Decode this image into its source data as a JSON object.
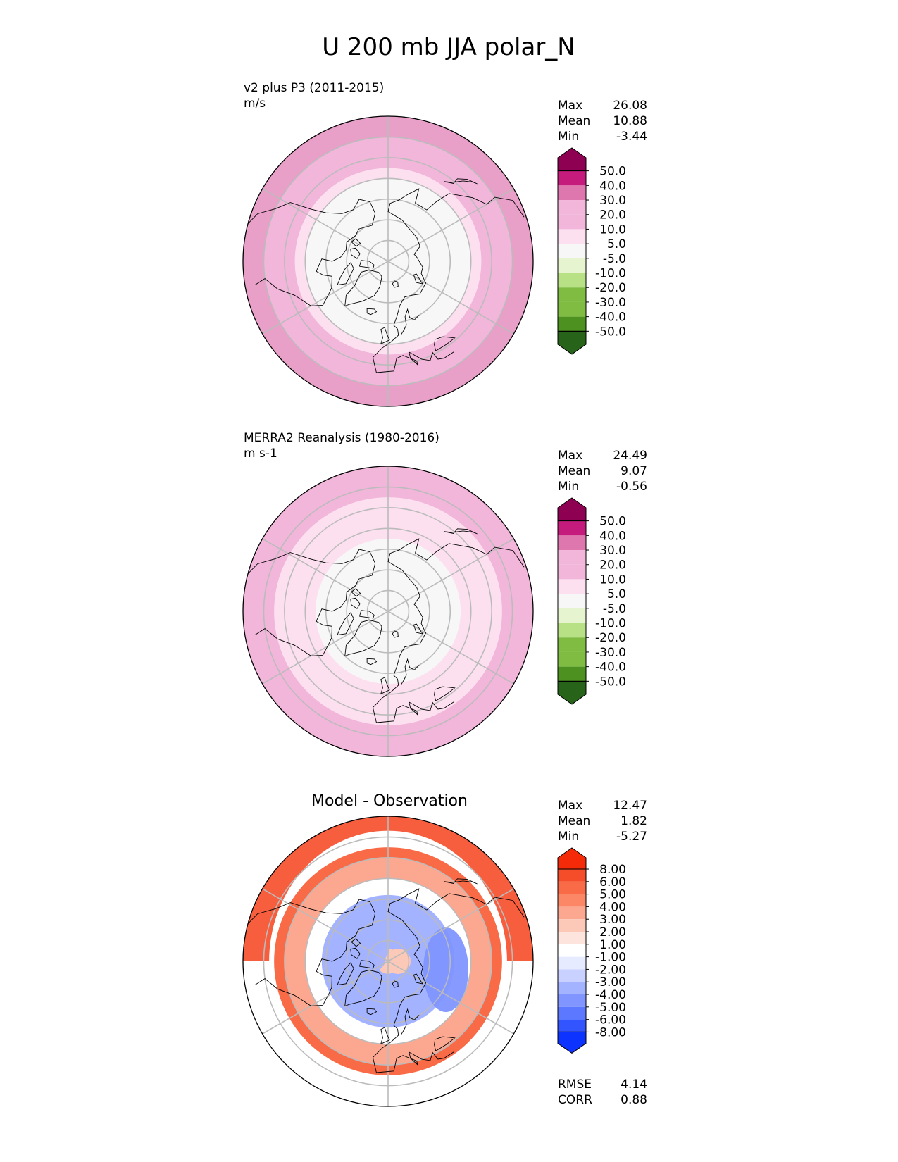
{
  "figure_title": "U 200 mb JJA polar_N",
  "palette": {
    "diverging_green_pink": [
      "#276419",
      "#4d9221",
      "#7fbc41",
      "#b8e186",
      "#e6f5d0",
      "#f7f7f7",
      "#fde0ef",
      "#f1b6da",
      "#de77ae",
      "#c51b7d",
      "#8e0152"
    ],
    "blue_white_red": [
      "#0c33ff",
      "#3355ff",
      "#5b78ff",
      "#8095ff",
      "#a4b3ff",
      "#c8d1ff",
      "#e6ebff",
      "#ffffff",
      "#fde4dc",
      "#fcc8b8",
      "#fca891",
      "#fb8767",
      "#f96a47",
      "#f54d29",
      "#f42a08"
    ],
    "land_outline": "#000000",
    "grid": "#bbbbbb"
  },
  "chart_data": [
    {
      "type": "heatmap",
      "projection": "north-polar-stereographic",
      "subtitle": "v2 plus P3 (2011-2015)",
      "units": "m/s",
      "stats": [
        {
          "label": "Max",
          "value": "26.08"
        },
        {
          "label": "Mean",
          "value": "10.88"
        },
        {
          "label": "Min",
          "value": "-3.44"
        }
      ],
      "colorbar": {
        "ticks": [
          "50.0",
          "40.0",
          "30.0",
          "20.0",
          "10.0",
          "5.0",
          "-5.0",
          "-10.0",
          "-20.0",
          "-30.0",
          "-40.0",
          "-50.0"
        ],
        "top_color": "#8e0152",
        "bottom_color": "#276419"
      },
      "field_rings": [
        {
          "lat_from": 50,
          "lat_to": 90,
          "level": "-5 to 5",
          "color": "#f7f7f7"
        },
        {
          "lat_from": 45,
          "lat_to": 50,
          "level": "5 to 10",
          "color": "#fde0ef"
        },
        {
          "lat_from": 30,
          "lat_to": 45,
          "level": "10 to 20",
          "color": "#f1b6da"
        },
        {
          "lat_from": 20,
          "lat_to": 30,
          "level": "20 to 30",
          "color": "#e8a0c8"
        }
      ]
    },
    {
      "type": "heatmap",
      "projection": "north-polar-stereographic",
      "subtitle": "MERRA2 Reanalysis (1980-2016)",
      "units": "m s-1",
      "stats": [
        {
          "label": "Max",
          "value": "24.49"
        },
        {
          "label": "Mean",
          "value": "9.07"
        },
        {
          "label": "Min",
          "value": "-0.56"
        }
      ],
      "colorbar": {
        "ticks": [
          "50.0",
          "40.0",
          "30.0",
          "20.0",
          "10.0",
          "5.0",
          "-5.0",
          "-10.0",
          "-20.0",
          "-30.0",
          "-40.0",
          "-50.0"
        ],
        "top_color": "#8e0152",
        "bottom_color": "#276419"
      },
      "field_rings": [
        {
          "lat_from": 55,
          "lat_to": 90,
          "level": "-5 to 5",
          "color": "#f7f7f7"
        },
        {
          "lat_from": 35,
          "lat_to": 55,
          "level": "5 to 10",
          "color": "#fde0ef"
        },
        {
          "lat_from": 20,
          "lat_to": 35,
          "level": "10 to 20",
          "color": "#f1b6da"
        }
      ]
    },
    {
      "type": "heatmap",
      "projection": "north-polar-stereographic",
      "subtitle": "Model - Observation",
      "units": "",
      "stats": [
        {
          "label": "Max",
          "value": "12.47"
        },
        {
          "label": "Mean",
          "value": "1.82"
        },
        {
          "label": "Min",
          "value": "-5.27"
        }
      ],
      "colorbar": {
        "ticks": [
          "8.00",
          "6.00",
          "5.00",
          "4.00",
          "3.00",
          "2.00",
          "1.00",
          "-1.00",
          "-2.00",
          "-3.00",
          "-4.00",
          "-5.00",
          "-6.00",
          "-8.00"
        ],
        "top_color": "#f42a08",
        "bottom_color": "#0c33ff"
      },
      "field_rings": [
        {
          "lat_from": 35,
          "lat_to": 40,
          "level": "5 to 6",
          "color": "#f96a47"
        },
        {
          "lat_from": 40,
          "lat_to": 50,
          "level": "3 to 4",
          "color": "#fca891"
        },
        {
          "lat_from": 50,
          "lat_to": 58,
          "level": "-1 to 1",
          "color": "#ffffff"
        },
        {
          "lat_from": 58,
          "lat_to": 84,
          "level": "-3 to -2",
          "color": "#a4b3ff"
        },
        {
          "lat_from": 84,
          "lat_to": 90,
          "level": "1 to 2",
          "color": "#fcc8b8"
        }
      ],
      "footer_stats": [
        {
          "label": "RMSE",
          "value": "4.14"
        },
        {
          "label": "CORR",
          "value": "0.88"
        }
      ]
    }
  ]
}
